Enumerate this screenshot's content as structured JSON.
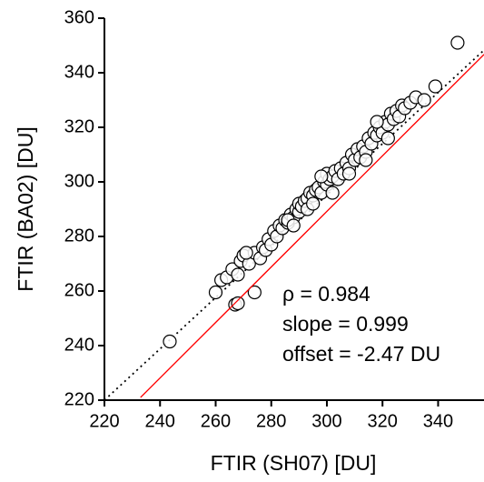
{
  "chart_data": {
    "type": "scatter",
    "x_label": "FTIR (SH07) [DU]",
    "y_label": "FTIR (BA02) [DU]",
    "annotations": [
      "ρ = 0.984",
      "slope = 0.999",
      "offset = -2.47 DU"
    ],
    "xlim": [
      220,
      356.5
    ],
    "ylim": [
      220,
      360
    ],
    "xticks": [
      220,
      240,
      260,
      280,
      300,
      320,
      340
    ],
    "yticks": [
      220,
      240,
      260,
      280,
      300,
      320,
      340,
      360
    ],
    "marker_color": "#000000",
    "x": [
      262,
      264,
      266,
      268,
      269,
      270,
      272,
      274,
      276,
      277,
      278,
      279,
      280,
      281,
      282,
      283,
      284,
      285,
      286,
      287,
      288,
      289,
      290,
      290,
      291,
      292,
      293,
      293,
      294,
      295,
      295,
      296,
      297,
      298,
      299,
      300,
      300,
      301,
      302,
      303,
      304,
      305,
      306,
      307,
      308,
      309,
      310,
      311,
      312,
      313,
      314,
      315,
      316,
      317,
      318,
      319,
      320,
      321,
      322,
      323,
      324,
      325,
      326,
      327,
      328,
      330,
      332,
      335,
      339,
      347,
      243.5,
      260,
      267,
      268,
      274,
      271,
      286,
      288,
      298,
      302,
      308,
      314,
      318,
      322
    ],
    "y": [
      264,
      265,
      268,
      266,
      271,
      273,
      270,
      274,
      272,
      276,
      275,
      279,
      277,
      282,
      280,
      284,
      283,
      286,
      285,
      288,
      287,
      290,
      289,
      292,
      291,
      293,
      294,
      290,
      296,
      295,
      292,
      297,
      298,
      296,
      300,
      299,
      303,
      301,
      302,
      304,
      301,
      305,
      303,
      307,
      305,
      310,
      308,
      312,
      309,
      313,
      311,
      316,
      314,
      318,
      317,
      320,
      318,
      322,
      321,
      325,
      323,
      326,
      324,
      328,
      327,
      329,
      331,
      330,
      335,
      351,
      241.5,
      259.5,
      255,
      255.5,
      259.5,
      274,
      286,
      284,
      302,
      296,
      303,
      308,
      322,
      316
    ],
    "lines": [
      {
        "x": [
          220,
          356.5
        ],
        "y": [
          220,
          348.3
        ],
        "color": "#000000",
        "style": "dotted"
      },
      {
        "x": [
          233,
          356.5
        ],
        "y": [
          221,
          346.7
        ],
        "color": "#ff0000",
        "style": "solid"
      }
    ]
  }
}
